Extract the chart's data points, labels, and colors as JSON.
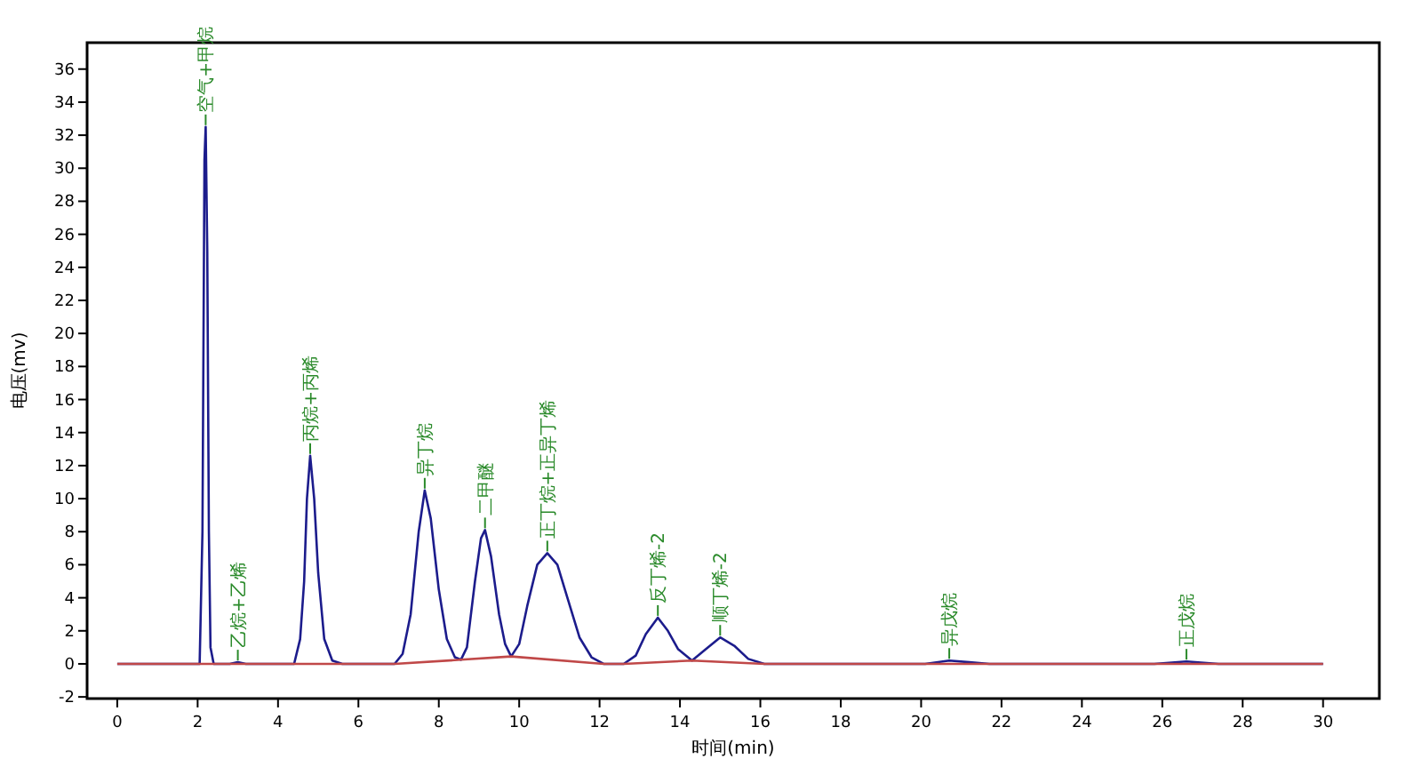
{
  "chart_data": {
    "type": "line",
    "xlabel": "时间(min)",
    "ylabel": "电压(mv)",
    "xlim": [
      -0.75,
      31.4
    ],
    "ylim": [
      -2.1,
      37.6
    ],
    "xticks": [
      0,
      2,
      4,
      6,
      8,
      10,
      12,
      14,
      16,
      18,
      20,
      22,
      24,
      26,
      28,
      30
    ],
    "yticks": [
      -2,
      0,
      2,
      4,
      6,
      8,
      10,
      12,
      14,
      16,
      18,
      20,
      22,
      24,
      26,
      28,
      30,
      32,
      34,
      36
    ],
    "series": [
      {
        "color": "#1c1c8c",
        "x": [
          0,
          2.05,
          2.12,
          2.17,
          2.2,
          2.24,
          2.28,
          2.32,
          2.4,
          2.8,
          3.0,
          3.2,
          4.4,
          4.55,
          4.65,
          4.72,
          4.8,
          4.9,
          5.0,
          5.15,
          5.35,
          5.6,
          6.9,
          7.1,
          7.3,
          7.5,
          7.65,
          7.8,
          8.0,
          8.2,
          8.4,
          8.55,
          8.7,
          8.9,
          9.05,
          9.15,
          9.3,
          9.5,
          9.65,
          9.8,
          10.0,
          10.2,
          10.45,
          10.7,
          10.95,
          11.2,
          11.5,
          11.8,
          12.1,
          12.6,
          12.9,
          13.15,
          13.45,
          13.7,
          13.95,
          14.3,
          14.6,
          15.0,
          15.35,
          15.7,
          16.1,
          20.1,
          20.7,
          21.2,
          21.7,
          25.8,
          26.6,
          27.4,
          30
        ],
        "values": [
          0,
          0,
          8,
          30.5,
          32.5,
          25,
          8,
          1,
          0,
          0,
          0.1,
          0,
          0,
          1.5,
          5,
          10,
          12.6,
          10,
          5.5,
          1.5,
          0.2,
          0,
          0,
          0.6,
          3,
          8,
          10.5,
          8.8,
          4.5,
          1.5,
          0.4,
          0.25,
          1,
          5,
          7.6,
          8.1,
          6.5,
          3,
          1.2,
          0.45,
          1.2,
          3.5,
          6,
          6.7,
          6,
          4,
          1.6,
          0.4,
          0,
          0,
          0.5,
          1.8,
          2.8,
          2,
          0.9,
          0.2,
          0.8,
          1.6,
          1.1,
          0.3,
          0,
          0,
          0.2,
          0.1,
          0,
          0,
          0.15,
          0,
          0
        ]
      },
      {
        "color": "#c04848",
        "x": [
          0,
          6.9,
          8.55,
          9.8,
          12.1,
          12.6,
          14.3,
          16.1,
          30
        ],
        "values": [
          0,
          0,
          0.25,
          0.45,
          0,
          0,
          0.2,
          0,
          0
        ]
      }
    ],
    "annotations": [
      {
        "text": "空气+甲烷",
        "x": 2.2,
        "y": 32.5
      },
      {
        "text": "乙烷+乙烯",
        "x": 3.0,
        "y": 0.1
      },
      {
        "text": "丙烷+丙烯",
        "x": 4.8,
        "y": 12.6
      },
      {
        "text": "异丁烷",
        "x": 7.65,
        "y": 10.5
      },
      {
        "text": "二甲醚",
        "x": 9.15,
        "y": 8.1
      },
      {
        "text": "正丁烷+正异丁烯",
        "x": 10.7,
        "y": 6.7
      },
      {
        "text": "反丁烯-2",
        "x": 13.45,
        "y": 2.8
      },
      {
        "text": "顺丁烯-2",
        "x": 15.0,
        "y": 1.6
      },
      {
        "text": "异戊烷",
        "x": 20.7,
        "y": 0.2
      },
      {
        "text": "正戊烷",
        "x": 26.6,
        "y": 0.15
      }
    ]
  }
}
